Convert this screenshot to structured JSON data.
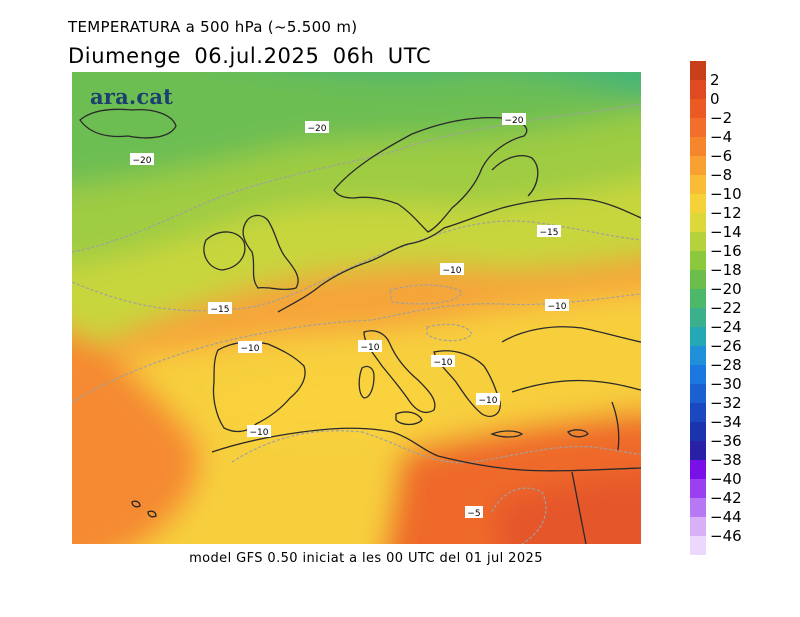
{
  "header": {
    "title": "TEMPERATURA a 500 hPa (~5.500 m)",
    "subtitle": "Diumenge  06.jul.2025 06h  UTC"
  },
  "footer": "model GFS 0.50 iniciat a les 00 UTC del 01 jul 2025",
  "map": {
    "logo": "ara.cat",
    "contour_labels": [
      {
        "id": "c1",
        "text": "-20"
      },
      {
        "id": "c2",
        "text": "-20"
      },
      {
        "id": "c3",
        "text": "-20"
      },
      {
        "id": "c4",
        "text": "-15"
      },
      {
        "id": "c5",
        "text": "-15"
      },
      {
        "id": "c6",
        "text": "-10"
      },
      {
        "id": "c7",
        "text": "-10"
      },
      {
        "id": "c8",
        "text": "-10"
      },
      {
        "id": "c9",
        "text": "-10"
      },
      {
        "id": "c10",
        "text": "-10"
      },
      {
        "id": "c11",
        "text": "-10"
      },
      {
        "id": "c12",
        "text": "-10"
      },
      {
        "id": "c13",
        "text": "-5"
      }
    ]
  },
  "legend": {
    "labels": [
      "2",
      "0",
      "-2",
      "-4",
      "-6",
      "-8",
      "-10",
      "-12",
      "-14",
      "-16",
      "-18",
      "-20",
      "-22",
      "-24",
      "-26",
      "-28",
      "-30",
      "-32",
      "-34",
      "-36",
      "-38",
      "-40",
      "-42",
      "-44",
      "-46"
    ],
    "colors": [
      "#c8401a",
      "#e04a22",
      "#ec5a24",
      "#f26e2a",
      "#f5862e",
      "#f8a032",
      "#f9bc36",
      "#f6d23a",
      "#dcd83a",
      "#b4d23c",
      "#8cc83e",
      "#6cbe4c",
      "#4cb868",
      "#3ab08c",
      "#24a8b4",
      "#2090d8",
      "#1c78e0",
      "#1a60d0",
      "#1a48c0",
      "#1a34b0",
      "#2a20a8",
      "#7a10e8",
      "#9a40f0",
      "#b878f4",
      "#d8b0f8",
      "#ecd8fc"
    ]
  }
}
